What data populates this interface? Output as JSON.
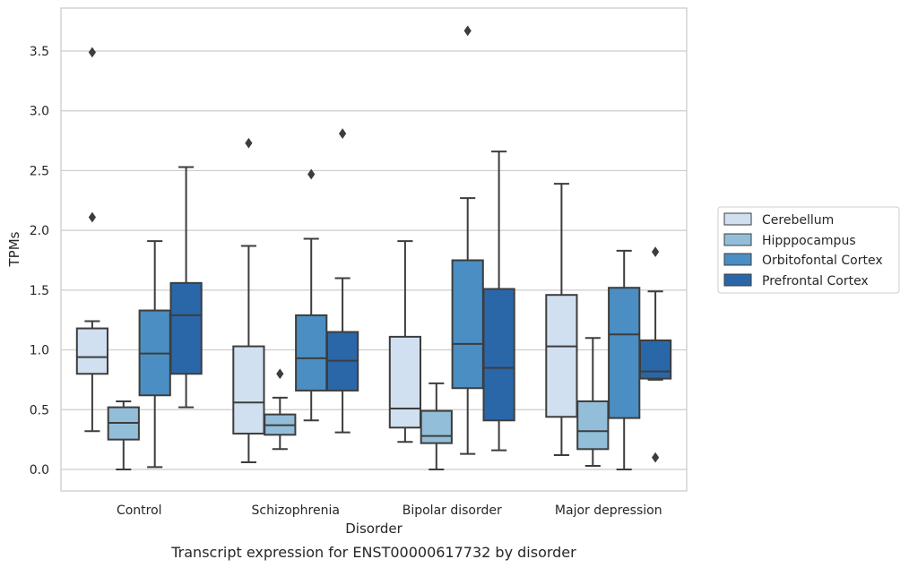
{
  "chart_data": {
    "type": "box",
    "title": "",
    "caption": "Transcript expression for ENST00000617732 by disorder",
    "xlabel": "Disorder",
    "ylabel": "TPMs",
    "ylim": [
      -0.18,
      3.86
    ],
    "yticks": [
      "0.0",
      "0.5",
      "1.0",
      "1.5",
      "2.0",
      "2.5",
      "3.0",
      "3.5"
    ],
    "grid": "horizontal",
    "legend_position": "right",
    "categories": [
      "Control",
      "Schizophrenia",
      "Bipolar disorder",
      "Major depression"
    ],
    "series": [
      {
        "name": "Cerebellum",
        "color": "#d0e0f0",
        "boxes": [
          {
            "whisker_low": 0.32,
            "q1": 0.8,
            "median": 0.94,
            "q3": 1.18,
            "whisker_high": 1.24,
            "outliers": [
              2.11,
              3.49
            ]
          },
          {
            "whisker_low": 0.06,
            "q1": 0.3,
            "median": 0.56,
            "q3": 1.03,
            "whisker_high": 1.87,
            "outliers": [
              2.73
            ]
          },
          {
            "whisker_low": 0.23,
            "q1": 0.35,
            "median": 0.51,
            "q3": 1.11,
            "whisker_high": 1.91,
            "outliers": []
          },
          {
            "whisker_low": 0.12,
            "q1": 0.44,
            "median": 1.03,
            "q3": 1.46,
            "whisker_high": 2.39,
            "outliers": []
          }
        ]
      },
      {
        "name": "Hipppocampus",
        "color": "#93bed9",
        "boxes": [
          {
            "whisker_low": 0.0,
            "q1": 0.25,
            "median": 0.39,
            "q3": 0.52,
            "whisker_high": 0.57,
            "outliers": []
          },
          {
            "whisker_low": 0.17,
            "q1": 0.29,
            "median": 0.37,
            "q3": 0.46,
            "whisker_high": 0.6,
            "outliers": [
              0.8
            ]
          },
          {
            "whisker_low": 0.0,
            "q1": 0.22,
            "median": 0.28,
            "q3": 0.49,
            "whisker_high": 0.72,
            "outliers": []
          },
          {
            "whisker_low": 0.03,
            "q1": 0.17,
            "median": 0.32,
            "q3": 0.57,
            "whisker_high": 1.1,
            "outliers": []
          }
        ]
      },
      {
        "name": "Orbitofontal Cortex",
        "color": "#4a8ec3",
        "boxes": [
          {
            "whisker_low": 0.02,
            "q1": 0.62,
            "median": 0.97,
            "q3": 1.33,
            "whisker_high": 1.91,
            "outliers": []
          },
          {
            "whisker_low": 0.41,
            "q1": 0.66,
            "median": 0.93,
            "q3": 1.29,
            "whisker_high": 1.93,
            "outliers": [
              2.47
            ]
          },
          {
            "whisker_low": 0.13,
            "q1": 0.68,
            "median": 1.05,
            "q3": 1.75,
            "whisker_high": 2.27,
            "outliers": [
              3.67
            ]
          },
          {
            "whisker_low": 0.0,
            "q1": 0.43,
            "median": 1.13,
            "q3": 1.52,
            "whisker_high": 1.83,
            "outliers": []
          }
        ]
      },
      {
        "name": "Prefrontal Cortex",
        "color": "#2a67a8",
        "boxes": [
          {
            "whisker_low": 0.52,
            "q1": 0.8,
            "median": 1.29,
            "q3": 1.56,
            "whisker_high": 2.53,
            "outliers": []
          },
          {
            "whisker_low": 0.31,
            "q1": 0.66,
            "median": 0.91,
            "q3": 1.15,
            "whisker_high": 1.6,
            "outliers": [
              2.81
            ]
          },
          {
            "whisker_low": 0.16,
            "q1": 0.41,
            "median": 0.85,
            "q3": 1.51,
            "whisker_high": 2.66,
            "outliers": []
          },
          {
            "whisker_low": 0.75,
            "q1": 0.76,
            "median": 0.82,
            "q3": 1.08,
            "whisker_high": 1.49,
            "outliers": [
              0.1,
              1.82
            ]
          }
        ]
      }
    ]
  }
}
